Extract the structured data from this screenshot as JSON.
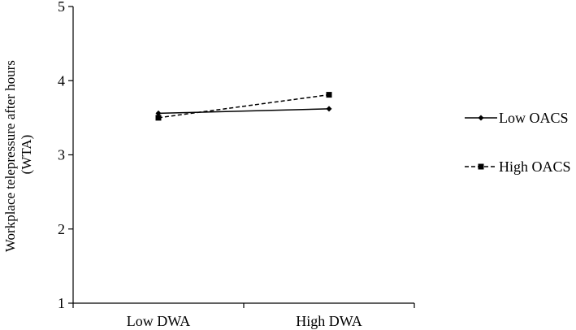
{
  "chart_data": {
    "type": "line",
    "title": "",
    "xlabel": "",
    "ylabel_lines": [
      "Workplace telepressure after hours",
      "(WTA)"
    ],
    "categories": [
      "Low DWA",
      "High DWA"
    ],
    "ylim": [
      1,
      5
    ],
    "yticks": [
      "1",
      "2",
      "3",
      "4",
      "5"
    ],
    "grid": false,
    "legend_position": "right",
    "series": [
      {
        "name": "Low OACS",
        "values": [
          3.56,
          3.62
        ],
        "line_style": "solid",
        "marker": "diamond",
        "color": "#000000"
      },
      {
        "name": "High OACS",
        "values": [
          3.5,
          3.81
        ],
        "line_style": "dashed",
        "marker": "square",
        "color": "#000000"
      }
    ]
  }
}
